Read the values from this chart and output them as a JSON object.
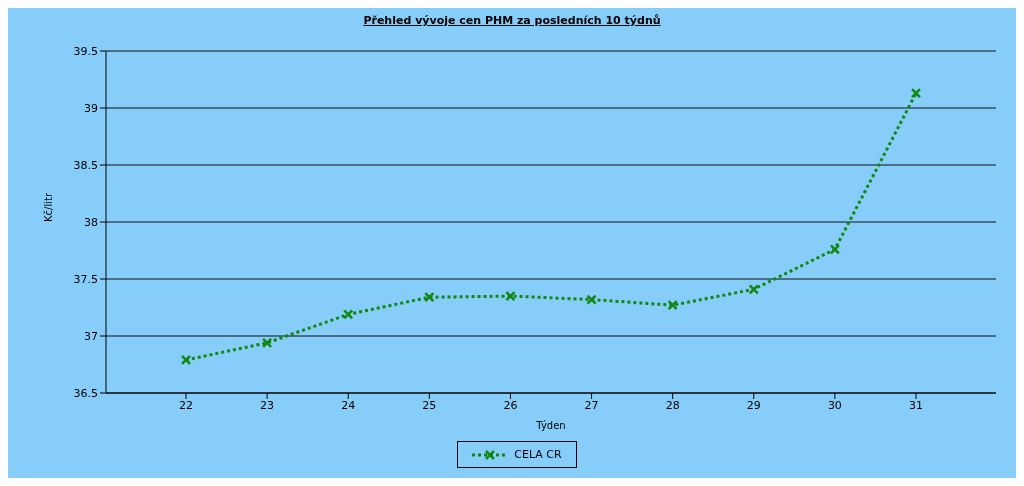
{
  "chart_data": {
    "type": "line",
    "title": "Přehled vývoje cen PHM za posledních 10 týdnů",
    "xlabel": "Týden",
    "ylabel": "Kč/litr",
    "categories": [
      "22",
      "23",
      "24",
      "25",
      "26",
      "27",
      "28",
      "29",
      "30",
      "31"
    ],
    "series": [
      {
        "name": "CELA CR",
        "color": "#118811",
        "values": [
          36.79,
          36.94,
          37.19,
          37.34,
          37.35,
          37.32,
          37.27,
          37.41,
          37.76,
          39.13
        ]
      }
    ],
    "ylim": [
      36.5,
      39.5
    ],
    "yticks": [
      36.5,
      37,
      37.5,
      38,
      38.5,
      39,
      39.5
    ],
    "grid": "y",
    "legend": "bottom",
    "marker": "cross",
    "line_style": "dotted"
  }
}
